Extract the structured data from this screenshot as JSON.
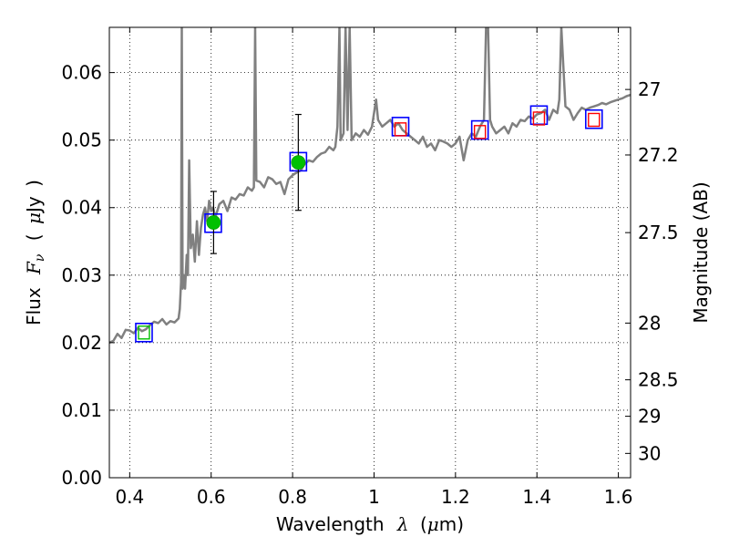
{
  "chart_data": {
    "type": "scatter",
    "xlabel": "Wavelength",
    "xlabel_symbol": "λ",
    "xlabel_unit_open": "(",
    "xlabel_unit_mu": "μ",
    "xlabel_unit_rest": "m)",
    "ylabel": "Flux",
    "ylabel_symbol": "F",
    "ylabel_symbol_sub": "ν",
    "ylabel_unit_open": "(",
    "ylabel_unit_mu": "μ",
    "ylabel_unit_rest": "Jy",
    "ylabel_unit_close": ")",
    "y2label": "Magnitude (AB)",
    "xlim": [
      0.35,
      1.63
    ],
    "ylim": [
      0.0,
      0.0667
    ],
    "grid": true,
    "x_ticks": [
      0.4,
      0.6,
      0.8,
      1.0,
      1.2,
      1.4,
      1.6
    ],
    "x_tick_labels": [
      "0.4",
      "0.6",
      "0.8",
      "1",
      "1.2",
      "1.4",
      "1.6"
    ],
    "y_ticks": [
      0.0,
      0.01,
      0.02,
      0.03,
      0.04,
      0.05,
      0.06
    ],
    "y_tick_labels": [
      "0.00",
      "0.01",
      "0.02",
      "0.03",
      "0.04",
      "0.05",
      "0.06"
    ],
    "y2_ticks": [
      {
        "label": "27",
        "flux": 0.0575
      },
      {
        "label": "27.2",
        "flux": 0.0478
      },
      {
        "label": "27.5",
        "flux": 0.0363
      },
      {
        "label": "28",
        "flux": 0.0229
      },
      {
        "label": "28.5",
        "flux": 0.0145
      },
      {
        "label": "29",
        "flux": 0.0091
      },
      {
        "label": "30",
        "flux": 0.0036
      }
    ],
    "series": [
      {
        "name": "model_spectrum",
        "style": "line",
        "color": "#808080",
        "points": [
          [
            0.35,
            0.02
          ],
          [
            0.36,
            0.0203
          ],
          [
            0.37,
            0.0213
          ],
          [
            0.38,
            0.0207
          ],
          [
            0.39,
            0.0219
          ],
          [
            0.4,
            0.0218
          ],
          [
            0.41,
            0.0214
          ],
          [
            0.42,
            0.0222
          ],
          [
            0.43,
            0.0217
          ],
          [
            0.44,
            0.022
          ],
          [
            0.45,
            0.0226
          ],
          [
            0.46,
            0.0231
          ],
          [
            0.47,
            0.0229
          ],
          [
            0.48,
            0.0235
          ],
          [
            0.49,
            0.0227
          ],
          [
            0.5,
            0.0232
          ],
          [
            0.51,
            0.023
          ],
          [
            0.52,
            0.0236
          ],
          [
            0.523,
            0.025
          ],
          [
            0.526,
            0.029
          ],
          [
            0.528,
            0.0667
          ],
          [
            0.53,
            0.028
          ],
          [
            0.533,
            0.03
          ],
          [
            0.536,
            0.028
          ],
          [
            0.54,
            0.033
          ],
          [
            0.543,
            0.03
          ],
          [
            0.546,
            0.047
          ],
          [
            0.55,
            0.034
          ],
          [
            0.555,
            0.036
          ],
          [
            0.56,
            0.032
          ],
          [
            0.565,
            0.038
          ],
          [
            0.57,
            0.033
          ],
          [
            0.575,
            0.037
          ],
          [
            0.58,
            0.039
          ],
          [
            0.585,
            0.04
          ],
          [
            0.59,
            0.038
          ],
          [
            0.595,
            0.041
          ],
          [
            0.6,
            0.0395
          ],
          [
            0.605,
            0.04
          ],
          [
            0.61,
            0.0385
          ],
          [
            0.62,
            0.0405
          ],
          [
            0.63,
            0.041
          ],
          [
            0.64,
            0.0395
          ],
          [
            0.65,
            0.0415
          ],
          [
            0.66,
            0.0412
          ],
          [
            0.67,
            0.042
          ],
          [
            0.68,
            0.0418
          ],
          [
            0.69,
            0.043
          ],
          [
            0.7,
            0.0425
          ],
          [
            0.705,
            0.043
          ],
          [
            0.708,
            0.0667
          ],
          [
            0.711,
            0.044
          ],
          [
            0.72,
            0.0438
          ],
          [
            0.73,
            0.043
          ],
          [
            0.74,
            0.0445
          ],
          [
            0.75,
            0.0442
          ],
          [
            0.76,
            0.0435
          ],
          [
            0.77,
            0.0438
          ],
          [
            0.78,
            0.042
          ],
          [
            0.79,
            0.0442
          ],
          [
            0.8,
            0.0448
          ],
          [
            0.81,
            0.0452
          ],
          [
            0.82,
            0.0455
          ],
          [
            0.83,
            0.0465
          ],
          [
            0.84,
            0.047
          ],
          [
            0.85,
            0.0468
          ],
          [
            0.86,
            0.0475
          ],
          [
            0.87,
            0.048
          ],
          [
            0.88,
            0.0482
          ],
          [
            0.89,
            0.049
          ],
          [
            0.9,
            0.0485
          ],
          [
            0.905,
            0.049
          ],
          [
            0.91,
            0.052
          ],
          [
            0.915,
            0.0667
          ],
          [
            0.918,
            0.05
          ],
          [
            0.925,
            0.051
          ],
          [
            0.93,
            0.0667
          ],
          [
            0.935,
            0.0515
          ],
          [
            0.94,
            0.0667
          ],
          [
            0.945,
            0.05
          ],
          [
            0.955,
            0.051
          ],
          [
            0.965,
            0.0505
          ],
          [
            0.975,
            0.0515
          ],
          [
            0.985,
            0.0508
          ],
          [
            0.995,
            0.052
          ],
          [
            1.005,
            0.056
          ],
          [
            1.01,
            0.053
          ],
          [
            1.02,
            0.052
          ],
          [
            1.03,
            0.0525
          ],
          [
            1.04,
            0.053
          ],
          [
            1.05,
            0.052
          ],
          [
            1.06,
            0.0525
          ],
          [
            1.07,
            0.0515
          ],
          [
            1.08,
            0.051
          ],
          [
            1.09,
            0.0505
          ],
          [
            1.1,
            0.05
          ],
          [
            1.11,
            0.0495
          ],
          [
            1.12,
            0.0505
          ],
          [
            1.13,
            0.049
          ],
          [
            1.14,
            0.0495
          ],
          [
            1.15,
            0.0485
          ],
          [
            1.16,
            0.05
          ],
          [
            1.17,
            0.0498
          ],
          [
            1.18,
            0.0495
          ],
          [
            1.19,
            0.049
          ],
          [
            1.2,
            0.0495
          ],
          [
            1.21,
            0.0505
          ],
          [
            1.22,
            0.047
          ],
          [
            1.23,
            0.05
          ],
          [
            1.24,
            0.051
          ],
          [
            1.25,
            0.0505
          ],
          [
            1.26,
            0.052
          ],
          [
            1.27,
            0.053
          ],
          [
            1.275,
            0.0667
          ],
          [
            1.28,
            0.0667
          ],
          [
            1.285,
            0.053
          ],
          [
            1.29,
            0.052
          ],
          [
            1.3,
            0.051
          ],
          [
            1.31,
            0.0515
          ],
          [
            1.32,
            0.052
          ],
          [
            1.33,
            0.051
          ],
          [
            1.34,
            0.0525
          ],
          [
            1.35,
            0.052
          ],
          [
            1.36,
            0.053
          ],
          [
            1.37,
            0.0528
          ],
          [
            1.38,
            0.0535
          ],
          [
            1.39,
            0.0532
          ],
          [
            1.4,
            0.0538
          ],
          [
            1.41,
            0.054
          ],
          [
            1.42,
            0.0545
          ],
          [
            1.43,
            0.053
          ],
          [
            1.44,
            0.0545
          ],
          [
            1.45,
            0.054
          ],
          [
            1.455,
            0.056
          ],
          [
            1.46,
            0.0667
          ],
          [
            1.47,
            0.055
          ],
          [
            1.48,
            0.0545
          ],
          [
            1.49,
            0.053
          ],
          [
            1.5,
            0.054
          ],
          [
            1.51,
            0.0548
          ],
          [
            1.52,
            0.0545
          ],
          [
            1.53,
            0.0548
          ],
          [
            1.54,
            0.055
          ],
          [
            1.55,
            0.0552
          ],
          [
            1.56,
            0.0555
          ],
          [
            1.57,
            0.0553
          ],
          [
            1.58,
            0.0556
          ],
          [
            1.59,
            0.0558
          ],
          [
            1.6,
            0.056
          ],
          [
            1.61,
            0.0562
          ],
          [
            1.62,
            0.0565
          ],
          [
            1.63,
            0.0567
          ]
        ]
      },
      {
        "name": "model_flux",
        "style": "blue_square",
        "color": "#0000ff",
        "points": [
          [
            0.435,
            0.0215
          ],
          [
            0.605,
            0.0377
          ],
          [
            0.814,
            0.0468
          ],
          [
            1.065,
            0.052
          ],
          [
            1.26,
            0.0515
          ],
          [
            1.405,
            0.0537
          ],
          [
            1.54,
            0.0531
          ]
        ]
      },
      {
        "name": "hst_acs_detections",
        "style": "green_circle_errorbar",
        "color": "#00c000",
        "points": [
          [
            0.606,
            0.0378
          ],
          [
            0.814,
            0.0467
          ]
        ],
        "errors": [
          [
            0.0046
          ],
          [
            0.0071
          ]
        ]
      },
      {
        "name": "upper_hst_acs",
        "style": "green_open_square",
        "color": "#00c000",
        "points": [
          [
            0.435,
            0.0215
          ]
        ]
      },
      {
        "name": "nir_limits",
        "style": "red_open_square",
        "color": "#ff0000",
        "points": [
          [
            1.065,
            0.0516
          ],
          [
            1.26,
            0.0512
          ],
          [
            1.405,
            0.0532
          ],
          [
            1.54,
            0.053
          ]
        ]
      }
    ]
  }
}
